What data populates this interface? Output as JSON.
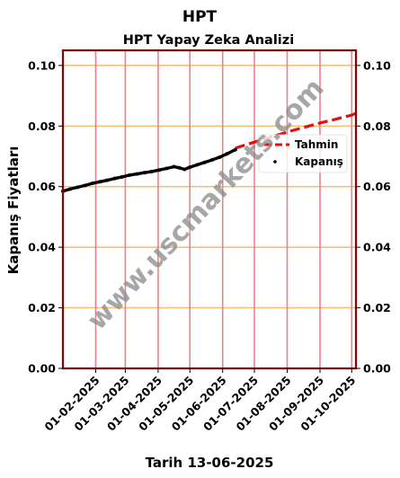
{
  "figure": {
    "suptitle": "HPT",
    "watermark": "www.uscmarkets.com"
  },
  "chart_data": {
    "type": "line",
    "title": "HPT Yapay Zeka Analizi",
    "xlabel": "Tarih 13-06-2025",
    "ylabel": "Kapanış Fiyatları",
    "xlim": [
      "2025-01-01",
      "2025-10-05"
    ],
    "ylim": [
      0,
      0.105
    ],
    "x_ticks": [
      "01-02-2025",
      "01-03-2025",
      "01-04-2025",
      "01-05-2025",
      "01-06-2025",
      "01-07-2025",
      "01-08-2025",
      "01-09-2025",
      "01-10-2025"
    ],
    "y_ticks": [
      "0.00",
      "0.02",
      "0.04",
      "0.06",
      "0.08",
      "0.10"
    ],
    "grid": {
      "horizontal_color": "#f5c07a",
      "vertical_color": "#e8838a"
    },
    "legend": {
      "position": "right",
      "entries": [
        "Tahmin",
        "Kapanış"
      ]
    },
    "series": [
      {
        "name": "Kapanış",
        "style": "points",
        "color": "#000000",
        "x": [
          "2025-01-01",
          "2025-01-08",
          "2025-01-15",
          "2025-01-22",
          "2025-01-29",
          "2025-02-05",
          "2025-02-12",
          "2025-02-19",
          "2025-02-26",
          "2025-03-05",
          "2025-03-12",
          "2025-03-19",
          "2025-03-26",
          "2025-04-02",
          "2025-04-09",
          "2025-04-16",
          "2025-04-21",
          "2025-04-26",
          "2025-05-01",
          "2025-05-08",
          "2025-05-15",
          "2025-05-22",
          "2025-05-29",
          "2025-06-05",
          "2025-06-13"
        ],
        "y": [
          0.0585,
          0.0592,
          0.0598,
          0.0604,
          0.0611,
          0.0616,
          0.0621,
          0.0627,
          0.0632,
          0.0638,
          0.0642,
          0.0646,
          0.065,
          0.0655,
          0.066,
          0.0666,
          0.0662,
          0.0657,
          0.0664,
          0.0672,
          0.068,
          0.0688,
          0.0697,
          0.0708,
          0.0722
        ]
      },
      {
        "name": "Tahmin",
        "style": "dashed",
        "color": "#e01010",
        "x": [
          "2025-06-13",
          "2025-07-01",
          "2025-07-15",
          "2025-08-01",
          "2025-08-15",
          "2025-09-01",
          "2025-09-15",
          "2025-10-01",
          "2025-10-05"
        ],
        "y": [
          0.0727,
          0.0747,
          0.0762,
          0.078,
          0.0794,
          0.081,
          0.0822,
          0.0836,
          0.0842
        ]
      }
    ],
    "colors": {
      "frame": "#8b0000",
      "prediction": "#e01010",
      "actual": "#000000"
    }
  }
}
